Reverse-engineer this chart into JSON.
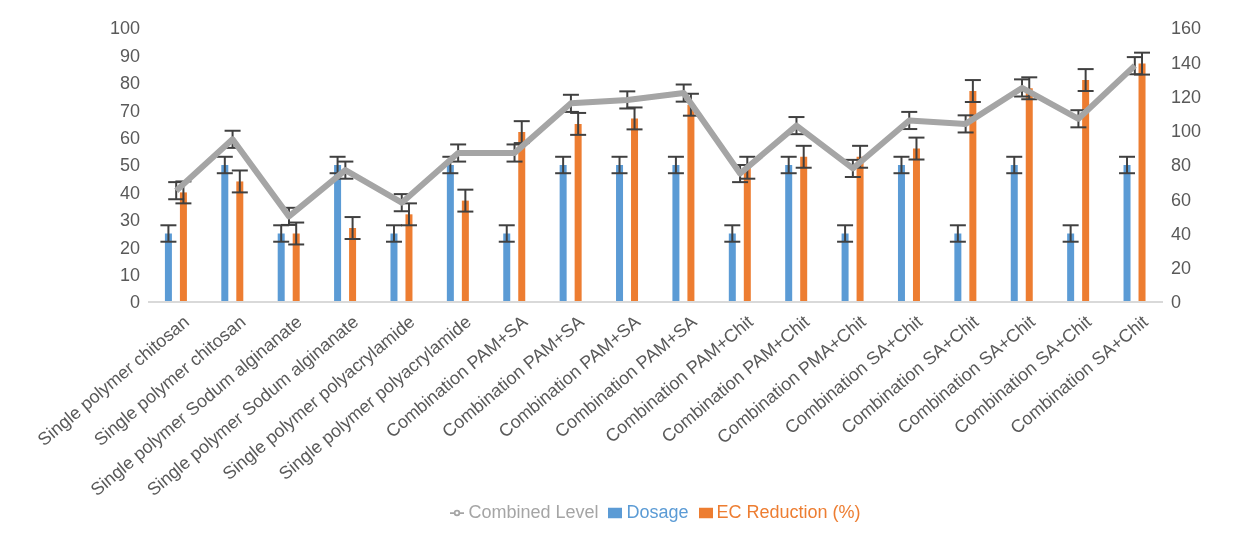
{
  "chart_data": {
    "type": "bar",
    "categories": [
      "Single polymer chitosan",
      "Single polymer chitosan",
      "Single polymer Sodum alginanate",
      "Single polymer Sodum alginanate",
      "Single polymer polyacrylamide",
      "Single polymer polyacrylamide",
      "Combination PAM+SA",
      "Combination PAM+SA",
      "Combination PAM+SA",
      "Combination PAM+SA",
      "Combination PAM+Chit",
      "Combination PAM+Chit",
      "Combination PMA+Chit",
      "Combination SA+Chit",
      "Combination SA+Chit",
      "Combination SA+Chit",
      "Combination SA+Chit",
      "Combination SA+Chit"
    ],
    "series": [
      {
        "name": "Dosage",
        "color": "#5b9bd5",
        "values": [
          25,
          50,
          25,
          50,
          25,
          50,
          25,
          50,
          50,
          50,
          25,
          50,
          25,
          50,
          25,
          50,
          25,
          50
        ],
        "errors": [
          3,
          3,
          3,
          3,
          3,
          3,
          3,
          3,
          3,
          3,
          3,
          3,
          3,
          3,
          3,
          3,
          3,
          3
        ]
      },
      {
        "name": "EC Reduction (%)",
        "color": "#ed7d31",
        "values": [
          40,
          44,
          25,
          27,
          32,
          37,
          62,
          65,
          67,
          72,
          49,
          53,
          53,
          56,
          77,
          78,
          81,
          87
        ],
        "errors": [
          4,
          4,
          4,
          4,
          4,
          4,
          4,
          4,
          4,
          4,
          4,
          4,
          4,
          4,
          4,
          4,
          4,
          4
        ]
      },
      {
        "name": "Combined Level",
        "type": "line",
        "axis": "y2",
        "color": "#a5a5a5",
        "marker": "none",
        "values": [
          65,
          95,
          50,
          77,
          58,
          87,
          87,
          116,
          118,
          122,
          75,
          103,
          78,
          106,
          104,
          125,
          107,
          138
        ],
        "errors": [
          5,
          5,
          5,
          5,
          5,
          5,
          5,
          5,
          5,
          5,
          5,
          5,
          5,
          5,
          5,
          5,
          5,
          5
        ]
      }
    ],
    "ylim": [
      0,
      100
    ],
    "yticks": [
      0,
      10,
      20,
      30,
      40,
      50,
      60,
      70,
      80,
      90,
      100
    ],
    "y2lim": [
      0,
      160
    ],
    "y2ticks": [
      0,
      20,
      40,
      60,
      80,
      100,
      120,
      140,
      160
    ],
    "grid": false,
    "legend": "bottom"
  }
}
